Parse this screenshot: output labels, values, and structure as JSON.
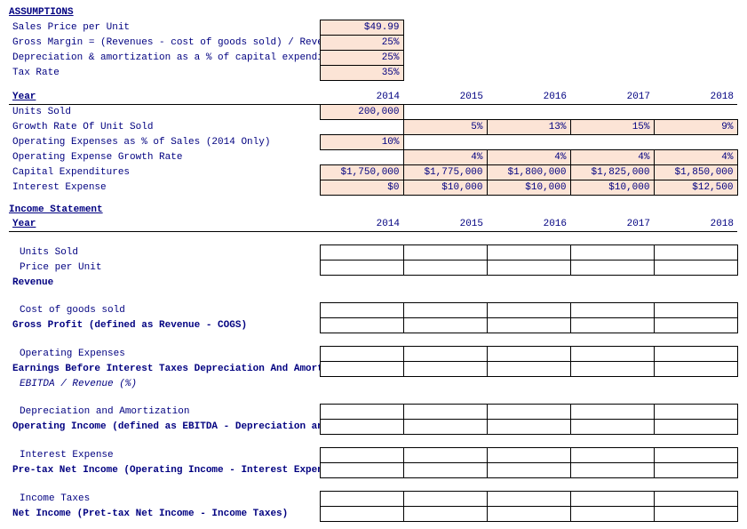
{
  "assumptions": {
    "header": "ASSUMPTIONS",
    "rows": [
      {
        "label": "Sales Price per Unit",
        "value": "$49.99"
      },
      {
        "label": "Gross Margin = (Revenues - cost of goods sold) / Reve",
        "value": "25%"
      },
      {
        "label": "Depreciation & amortization as a % of capital expendi",
        "value": "25%"
      },
      {
        "label": "Tax Rate",
        "value": "35%"
      }
    ]
  },
  "projections": {
    "year_label": "Year",
    "years": [
      "2014",
      "2015",
      "2016",
      "2017",
      "2018"
    ],
    "rows": {
      "units_sold": {
        "label": "Units Sold",
        "cells": [
          "200,000",
          "",
          "",
          "",
          ""
        ],
        "inputMask": [
          true,
          false,
          false,
          false,
          false
        ]
      },
      "growth_rate": {
        "label": "Growth Rate Of Unit Sold",
        "cells": [
          "",
          "5%",
          "13%",
          "15%",
          "9%"
        ],
        "inputMask": [
          false,
          true,
          true,
          true,
          true
        ]
      },
      "opex_pct": {
        "label": "Operating Expenses as % of Sales (2014 Only)",
        "cells": [
          "10%",
          "",
          "",
          "",
          ""
        ],
        "inputMask": [
          true,
          false,
          false,
          false,
          false
        ]
      },
      "opex_growth": {
        "label": "Operating Expense Growth Rate",
        "cells": [
          "",
          "4%",
          "4%",
          "4%",
          "4%"
        ],
        "inputMask": [
          false,
          true,
          true,
          true,
          true
        ]
      },
      "capex": {
        "label": "Capital Expenditures",
        "cells": [
          "$1,750,000",
          "$1,775,000",
          "$1,800,000",
          "$1,825,000",
          "$1,850,000"
        ],
        "inputMask": [
          true,
          true,
          true,
          true,
          true
        ]
      },
      "interest": {
        "label": "Interest Expense",
        "cells": [
          "$0",
          "$10,000",
          "$10,000",
          "$10,000",
          "$12,500"
        ],
        "inputMask": [
          true,
          true,
          true,
          true,
          true
        ]
      }
    }
  },
  "income_statement": {
    "header": "Income Statement",
    "year_label": "Year",
    "years": [
      "2014",
      "2015",
      "2016",
      "2017",
      "2018"
    ],
    "lines": {
      "units_sold": {
        "label": "Units Sold",
        "indent": true,
        "boxed": true
      },
      "ppu": {
        "label": "Price per Unit",
        "indent": true,
        "boxed": true
      },
      "revenue": {
        "label": "Revenue",
        "bold": true,
        "boxed": false
      },
      "cogs": {
        "label": "Cost of goods sold",
        "indent": true,
        "boxed": true
      },
      "gross_profit": {
        "label": "Gross Profit (defined as Revenue - COGS)",
        "bold": true,
        "boxed": true
      },
      "opex": {
        "label": "Operating Expenses",
        "indent": true,
        "boxed": true
      },
      "ebitda": {
        "label": "Earnings Before Interest Taxes Depreciation And Amortization (Ebitda)",
        "bold": true,
        "boxed": true
      },
      "ebitda_rev": {
        "label": "EBITDA / Revenue (%)",
        "indent": true,
        "italic": true,
        "boxed": false
      },
      "da": {
        "label": "Depreciation and Amortization",
        "indent": true,
        "boxed": true
      },
      "op_income": {
        "label": "Operating Income (defined as EBITDA - Depreciation and Amortization)",
        "bold": true,
        "boxed": true
      },
      "int_exp": {
        "label": "Interest Expense",
        "indent": true,
        "boxed": true
      },
      "pretax": {
        "label": "Pre-tax Net Income (Operating Income - Interest Expense)",
        "bold": true,
        "boxed": true
      },
      "taxes": {
        "label": "Income Taxes",
        "indent": true,
        "boxed": true
      },
      "net_income": {
        "label": "Net Income (Pret-tax Net Income - Income Taxes)",
        "bold": true,
        "boxed": true
      }
    }
  },
  "colors": {
    "text": "#000080",
    "input_bg": "#fce4d6",
    "border": "#000000",
    "page_bg": "#ffffff"
  }
}
